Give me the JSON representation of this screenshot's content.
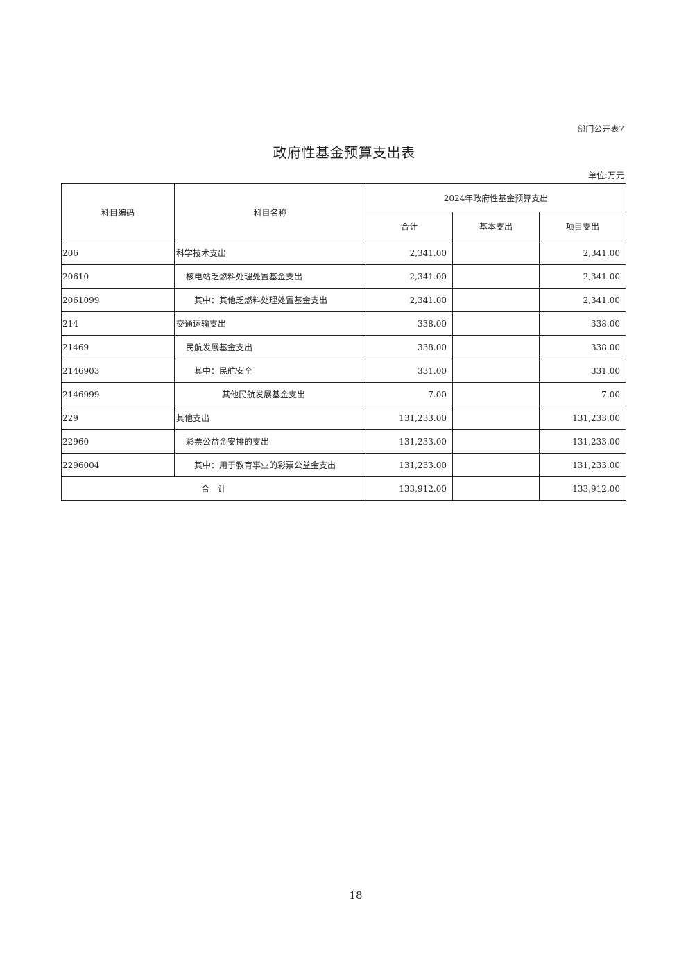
{
  "table_tag": "部门公开表7",
  "title": "政府性基金预算支出表",
  "unit": "单位:万元",
  "headers": {
    "code": "科目编码",
    "name": "科目名称",
    "group": "2024年政府性基金预算支出",
    "total": "合计",
    "basic": "基本支出",
    "project": "项目支出"
  },
  "rows": [
    {
      "code": "206",
      "name": "科学技术支出",
      "level": 0,
      "total": "2,341.00",
      "basic": "",
      "project": "2,341.00"
    },
    {
      "code": "20610",
      "name": "核电站乏燃料处理处置基金支出",
      "level": 1,
      "total": "2,341.00",
      "basic": "",
      "project": "2,341.00"
    },
    {
      "code": "2061099",
      "name": "其中：其他乏燃料处理处置基金支出",
      "level": 2,
      "total": "2,341.00",
      "basic": "",
      "project": "2,341.00"
    },
    {
      "code": "214",
      "name": "交通运输支出",
      "level": 0,
      "total": "338.00",
      "basic": "",
      "project": "338.00"
    },
    {
      "code": "21469",
      "name": "民航发展基金支出",
      "level": 1,
      "total": "338.00",
      "basic": "",
      "project": "338.00"
    },
    {
      "code": "2146903",
      "name": "其中：民航安全",
      "level": 2,
      "total": "331.00",
      "basic": "",
      "project": "331.00"
    },
    {
      "code": "2146999",
      "name": "其他民航发展基金支出",
      "level": 3,
      "total": "7.00",
      "basic": "",
      "project": "7.00"
    },
    {
      "code": "229",
      "name": "其他支出",
      "level": 0,
      "total": "131,233.00",
      "basic": "",
      "project": "131,233.00"
    },
    {
      "code": "22960",
      "name": "彩票公益金安排的支出",
      "level": 1,
      "total": "131,233.00",
      "basic": "",
      "project": "131,233.00"
    },
    {
      "code": "2296004",
      "name": "其中：用于教育事业的彩票公益金支出",
      "level": 2,
      "total": "131,233.00",
      "basic": "",
      "project": "131,233.00"
    }
  ],
  "footer": {
    "label": "合　计",
    "total": "133,912.00",
    "basic": "",
    "project": "133,912.00"
  },
  "page_number": "18"
}
